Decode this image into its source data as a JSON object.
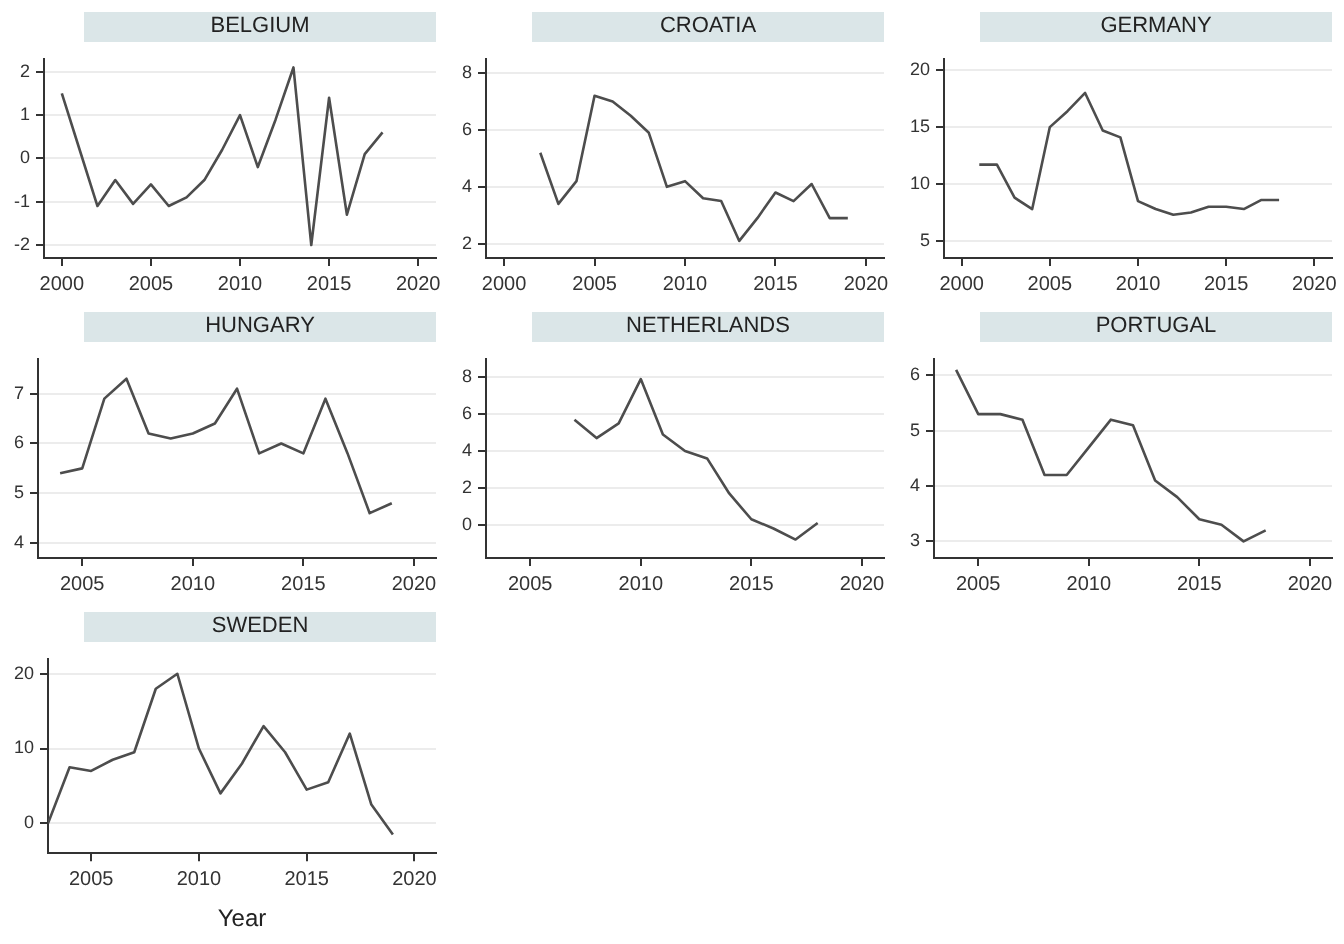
{
  "chart_data": [
    {
      "type": "line",
      "title": "BELGIUM",
      "x": [
        2000,
        2001,
        2002,
        2003,
        2004,
        2005,
        2006,
        2007,
        2008,
        2009,
        2010,
        2011,
        2012,
        2013,
        2014,
        2015,
        2016,
        2017,
        2018
      ],
      "values": [
        1.5,
        0.2,
        -1.1,
        -0.5,
        -1.05,
        -0.6,
        -1.1,
        -0.9,
        -0.5,
        0.2,
        1,
        -0.2,
        0.9,
        2.1,
        -2,
        1.4,
        -1.3,
        0.1,
        0.6
      ],
      "color": "#4d4d4d",
      "xlim": [
        1999,
        2021
      ],
      "xticks": [
        2000,
        2005,
        2010,
        2015,
        2020
      ],
      "ylim": [
        -2.3,
        2.3
      ],
      "yticks": [
        -2,
        -1,
        0,
        1,
        2
      ],
      "grid": "y",
      "legend": false,
      "marker": "none"
    },
    {
      "type": "line",
      "title": "CROATIA",
      "x": [
        2002,
        2003,
        2004,
        2005,
        2006,
        2007,
        2008,
        2009,
        2010,
        2011,
        2012,
        2013,
        2014,
        2015,
        2016,
        2017,
        2018,
        2019
      ],
      "values": [
        5.2,
        3.4,
        4.2,
        7.2,
        7,
        6.5,
        5.9,
        4,
        4.2,
        3.6,
        3.5,
        2.1,
        2.9,
        3.8,
        3.5,
        4.1,
        2.9,
        2.9
      ],
      "color": "#4d4d4d",
      "xlim": [
        1999,
        2021
      ],
      "xticks": [
        2000,
        2005,
        2010,
        2015,
        2020
      ],
      "ylim": [
        1.5,
        8.5
      ],
      "yticks": [
        2,
        4,
        6,
        8
      ],
      "grid": "y",
      "legend": false,
      "marker": "none"
    },
    {
      "type": "line",
      "title": "GERMANY",
      "x": [
        2001,
        2002,
        2003,
        2004,
        2005,
        2006,
        2007,
        2008,
        2009,
        2010,
        2011,
        2012,
        2013,
        2014,
        2015,
        2016,
        2017,
        2018
      ],
      "values": [
        11.7,
        11.7,
        8.8,
        7.8,
        15,
        16.4,
        18,
        14.7,
        14.1,
        8.5,
        7.8,
        7.3,
        7.5,
        8,
        8,
        7.8,
        8.6,
        8.6
      ],
      "color": "#4d4d4d",
      "xlim": [
        1999,
        2021
      ],
      "xticks": [
        2000,
        2005,
        2010,
        2015,
        2020
      ],
      "ylim": [
        3.5,
        21
      ],
      "yticks": [
        5,
        10,
        15,
        20
      ],
      "grid": "y",
      "legend": false,
      "marker": "none"
    },
    {
      "type": "line",
      "title": "HUNGARY",
      "x": [
        2004,
        2005,
        2006,
        2007,
        2008,
        2009,
        2010,
        2011,
        2012,
        2013,
        2014,
        2015,
        2016,
        2017,
        2018,
        2019
      ],
      "values": [
        5.4,
        5.5,
        6.9,
        7.3,
        6.2,
        6.1,
        6.2,
        6.4,
        7.1,
        5.8,
        6,
        5.8,
        6.9,
        5.8,
        4.6,
        4.8
      ],
      "color": "#4d4d4d",
      "xlim": [
        2003,
        2021
      ],
      "xticks": [
        2005,
        2010,
        2015,
        2020
      ],
      "ylim": [
        3.7,
        7.7
      ],
      "yticks": [
        4,
        5,
        6,
        7
      ],
      "grid": "y",
      "legend": false,
      "marker": "none"
    },
    {
      "type": "line",
      "title": "NETHERLANDS",
      "x": [
        2007,
        2008,
        2009,
        2010,
        2011,
        2012,
        2013,
        2014,
        2015,
        2016,
        2017,
        2018
      ],
      "values": [
        5.7,
        4.7,
        5.5,
        7.9,
        4.9,
        4,
        3.6,
        1.7,
        0.3,
        -0.2,
        -0.8,
        0.1
      ],
      "color": "#4d4d4d",
      "xlim": [
        2003,
        2021
      ],
      "xticks": [
        2005,
        2010,
        2015,
        2020
      ],
      "ylim": [
        -1.8,
        9
      ],
      "yticks": [
        0,
        2,
        4,
        6,
        8
      ],
      "grid": "y",
      "legend": false,
      "marker": "none"
    },
    {
      "type": "line",
      "title": "PORTUGAL",
      "x": [
        2004,
        2005,
        2006,
        2007,
        2008,
        2009,
        2010,
        2011,
        2012,
        2013,
        2014,
        2015,
        2016,
        2017,
        2018
      ],
      "values": [
        6.1,
        5.3,
        5.3,
        5.2,
        4.2,
        4.2,
        4.7,
        5.2,
        5.1,
        4.1,
        3.8,
        3.4,
        3.3,
        3,
        3.2
      ],
      "color": "#4d4d4d",
      "xlim": [
        2003,
        2021
      ],
      "xticks": [
        2005,
        2010,
        2015,
        2020
      ],
      "ylim": [
        2.7,
        6.3
      ],
      "yticks": [
        3,
        4,
        5,
        6
      ],
      "grid": "y",
      "legend": false,
      "marker": "none"
    },
    {
      "type": "line",
      "title": "SWEDEN",
      "xlabel": "Year",
      "x": [
        2003,
        2004,
        2005,
        2006,
        2007,
        2008,
        2009,
        2010,
        2011,
        2012,
        2013,
        2014,
        2015,
        2016,
        2017,
        2018,
        2019
      ],
      "values": [
        0,
        7.5,
        7,
        8.5,
        9.5,
        18,
        20,
        10,
        4,
        8,
        13,
        9.5,
        4.5,
        5.5,
        12,
        2.5,
        -1.5
      ],
      "color": "#4d4d4d",
      "xlim": [
        2003,
        2021
      ],
      "xticks": [
        2005,
        2010,
        2015,
        2020
      ],
      "ylim": [
        -4,
        22
      ],
      "yticks": [
        0,
        10,
        20
      ],
      "grid": "y",
      "legend": false,
      "marker": "none"
    }
  ]
}
